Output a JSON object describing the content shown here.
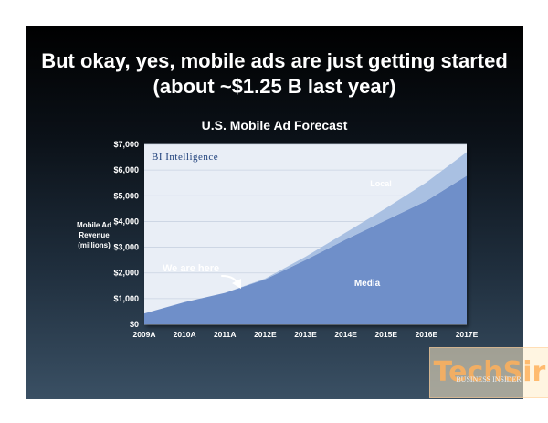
{
  "slide": {
    "headline_line1": "But okay, yes, mobile ads are just getting started",
    "headline_line2": "(about ~$1.25 B last year)"
  },
  "chart_data": {
    "type": "area",
    "title": "U.S. Mobile Ad Forecast",
    "ylabel_lines": [
      "Mobile Ad",
      "Revenue",
      "(millions)"
    ],
    "xlabel": "",
    "x": [
      "2009A",
      "2010A",
      "2011A",
      "2012E",
      "2013E",
      "2014E",
      "2015E",
      "2016E",
      "2017E"
    ],
    "y_ticks": [
      "$0",
      "$1,000",
      "$2,000",
      "$3,000",
      "$4,000",
      "$5,000",
      "$6,000",
      "$7,000"
    ],
    "ylim": [
      0,
      7000
    ],
    "series": [
      {
        "name": "Media",
        "values": [
          420,
          860,
          1220,
          1750,
          2500,
          3300,
          4050,
          4800,
          5780
        ],
        "color": "#6f8fc9"
      },
      {
        "name": "Local",
        "values": [
          0,
          0,
          0,
          30,
          130,
          270,
          470,
          720,
          920
        ],
        "color": "#a9c0e2"
      }
    ],
    "stacked": true,
    "grid": true,
    "background": "#e9eef6",
    "source_label": "BI Intelligence",
    "annotation": "We are here"
  },
  "watermark": {
    "brand": "TechSir",
    "publisher": "BUSINESS INSIDER"
  }
}
